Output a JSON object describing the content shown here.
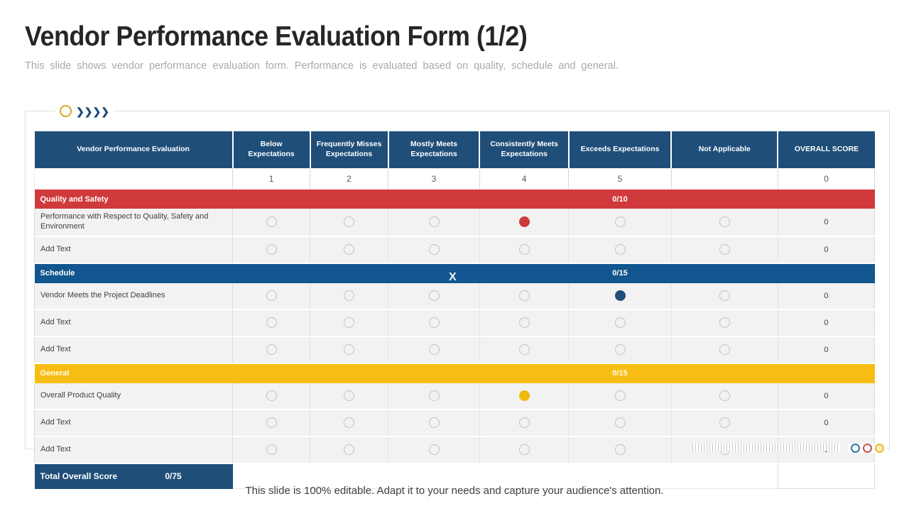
{
  "slide": {
    "title": "Vendor Performance Evaluation Form (1/2)",
    "subtitle": "This slide shows vendor performance evaluation form. Performance is evaluated based on quality, schedule and general.",
    "footer": "This slide is 100% editable. Adapt it to your needs and capture your audience's attention."
  },
  "decorations": {
    "chevrons": "❯❯❯❯",
    "watermark": "X"
  },
  "colors": {
    "header_blue": "#1f4e79",
    "section_red": "#d03a3c",
    "section_blue": "#11568e",
    "section_yellow": "#f8bd14",
    "radio_red": "#cc3b3d",
    "radio_blue": "#1f4e79",
    "radio_yellow": "#f0b90e"
  },
  "table": {
    "columns": [
      {
        "label": "Vendor Performance Evaluation",
        "points": "",
        "width": 23.6
      },
      {
        "label": "Below Expectations",
        "points": "1",
        "width": 9.2
      },
      {
        "label": "Frequently Misses Expectations",
        "points": "2",
        "width": 9.3
      },
      {
        "label": "Mostly Meets Expectations",
        "points": "3",
        "width": 10.9
      },
      {
        "label": "Consistently Meets Expectations",
        "points": "4",
        "width": 10.6
      },
      {
        "label": "Exceeds Expectations",
        "points": "5",
        "width": 12.2
      },
      {
        "label": "Not Applicable",
        "points": "",
        "width": 12.7
      },
      {
        "label": "OVERALL SCORE",
        "points": "0",
        "width": 11.5
      }
    ],
    "sections": [
      {
        "name": "Quality and Safety",
        "score": "0/10",
        "color": "red",
        "rows": [
          {
            "label": "Performance with Respect to Quality, Safety and Environment",
            "selected": 4,
            "score": "0"
          },
          {
            "label": "Add Text",
            "selected": 0,
            "score": "0"
          }
        ]
      },
      {
        "name": "Schedule",
        "score": "0/15",
        "color": "blue",
        "rows": [
          {
            "label": "Vendor Meets the Project Deadlines",
            "selected": 5,
            "score": "0"
          },
          {
            "label": "Add Text",
            "selected": 0,
            "score": "0"
          },
          {
            "label": "Add Text",
            "selected": 0,
            "score": "0"
          }
        ]
      },
      {
        "name": "General",
        "score": "0/15",
        "color": "yellow",
        "rows": [
          {
            "label": "Overall Product Quality",
            "selected": 4,
            "score": "0"
          },
          {
            "label": "Add Text",
            "selected": 0,
            "score": "0"
          },
          {
            "label": "Add Text",
            "selected": 0,
            "score": "0"
          }
        ]
      }
    ],
    "total": {
      "label": "Total Overall Score",
      "value": "0/75"
    }
  }
}
